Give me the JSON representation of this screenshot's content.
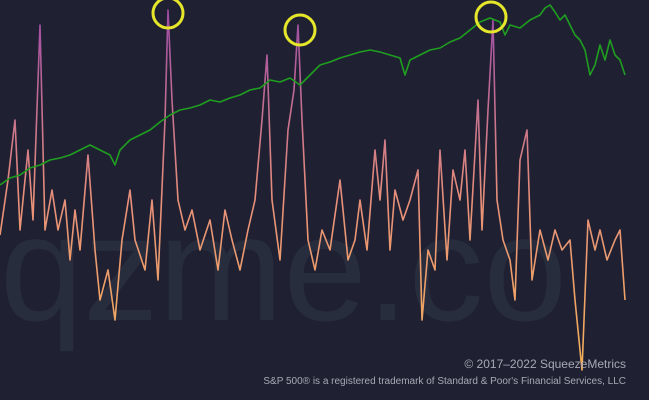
{
  "chart_data": {
    "type": "line",
    "watermark": "qzme.co",
    "annotations": [
      "© 2017–2022 SqueezeMetrics",
      "S&P 500® is a registered trademark of Standard & Poor's Financial Services, LLC"
    ],
    "xlim": [
      0,
      649
    ],
    "ylim": [
      0,
      100
    ],
    "series": [
      {
        "color": [
          "#f5b552",
          "#e8907a",
          "#9a48aa"
        ],
        "x": [
          0,
          8,
          15,
          20,
          28,
          33,
          40,
          45,
          52,
          58,
          65,
          70,
          75,
          80,
          88,
          95,
          100,
          108,
          115,
          122,
          130,
          135,
          145,
          152,
          158,
          165,
          168,
          172,
          178,
          185,
          192,
          200,
          210,
          218,
          225,
          232,
          240,
          248,
          255,
          262,
          267,
          272,
          280,
          288,
          294,
          298,
          302,
          308,
          315,
          322,
          330,
          340,
          348,
          355,
          360,
          367,
          375,
          380,
          385,
          390,
          395,
          403,
          410,
          418,
          422,
          428,
          435,
          440,
          447,
          453,
          460,
          465,
          470,
          478,
          482,
          488,
          493,
          497,
          503,
          510,
          515,
          520,
          527,
          532,
          540,
          548,
          555,
          562,
          570,
          575,
          582,
          588,
          595,
          600,
          607,
          615,
          620,
          625
        ],
        "values": [
          41.25,
          55,
          70,
          42.5,
          62.5,
          45,
          93.75,
          42.5,
          52.5,
          42.5,
          50,
          35,
          47.5,
          37.5,
          61.25,
          37.5,
          25,
          32.5,
          20,
          40,
          52.5,
          40,
          32.5,
          50,
          30,
          70,
          97.5,
          75,
          50,
          42.5,
          47.5,
          37.5,
          45,
          32.5,
          47.5,
          40,
          32.5,
          42.5,
          50,
          70,
          86.25,
          50,
          35,
          67.5,
          77.5,
          93.75,
          70,
          40,
          32.5,
          42.5,
          37.5,
          55,
          35,
          40,
          50,
          37.5,
          62.5,
          50,
          65,
          37.5,
          52.5,
          45,
          50,
          57.5,
          20,
          37.5,
          32.5,
          62.5,
          35,
          57.5,
          50,
          62.5,
          40,
          75,
          42.5,
          72.5,
          95,
          50,
          40,
          35,
          25,
          60,
          67.5,
          30,
          42.5,
          35,
          42.5,
          37.5,
          40,
          25,
          7.5,
          45,
          37.5,
          42.5,
          35,
          40,
          42.5,
          25
        ]
      },
      {
        "color": "#1f9e1f",
        "x": [
          0,
          10,
          20,
          30,
          40,
          50,
          60,
          70,
          80,
          90,
          100,
          110,
          115,
          120,
          130,
          140,
          150,
          160,
          170,
          180,
          190,
          200,
          210,
          220,
          230,
          240,
          250,
          260,
          270,
          280,
          290,
          300,
          310,
          320,
          330,
          340,
          350,
          360,
          370,
          380,
          390,
          400,
          405,
          410,
          420,
          430,
          440,
          450,
          460,
          470,
          480,
          490,
          500,
          505,
          510,
          520,
          530,
          540,
          545,
          550,
          555,
          560,
          565,
          570,
          575,
          580,
          585,
          590,
          595,
          600,
          605,
          610,
          615,
          620,
          625
        ],
        "values": [
          53.75,
          55.5,
          56.25,
          58,
          58.75,
          60,
          60.5,
          61.25,
          62.5,
          63.75,
          62.5,
          61.25,
          58.75,
          62.5,
          65,
          66.25,
          67.5,
          69.5,
          71.25,
          72.5,
          73,
          73.75,
          75,
          74.5,
          75.5,
          76.25,
          77.5,
          78,
          80,
          79.5,
          80.5,
          78.75,
          81.25,
          83.75,
          84.5,
          85.5,
          86.25,
          87,
          87.5,
          87,
          86.25,
          85.5,
          81.25,
          85,
          86.25,
          87.5,
          88,
          89.5,
          90.5,
          92.5,
          94.5,
          95.5,
          94.5,
          91.25,
          93.75,
          93,
          95,
          96.25,
          98,
          98.75,
          97,
          95,
          96.25,
          93.75,
          91.25,
          90,
          87.5,
          81.25,
          83.75,
          88.75,
          85,
          90,
          86.25,
          85,
          81.25
        ]
      }
    ]
  }
}
